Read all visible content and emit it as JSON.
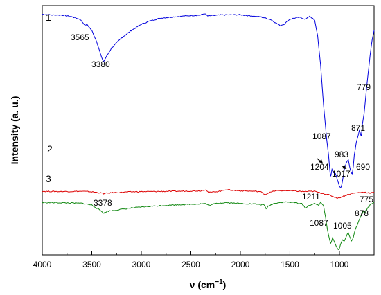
{
  "chart_data": {
    "type": "line",
    "xlabel": "ν (cm⁻¹)",
    "xlabel_parts": [
      "ν (cm",
      "−1",
      ")"
    ],
    "ylabel": "Intensity (a. u.)",
    "xlim": [
      4000,
      650
    ],
    "x_reversed": true,
    "xticks": [
      4000,
      3500,
      3000,
      2500,
      2000,
      1500,
      1000
    ],
    "y_ticks_shown": false,
    "grid": false,
    "legend": "none",
    "series": [
      {
        "label": "1",
        "color": "#0000dd",
        "points": [
          [
            4000,
            0.965
          ],
          [
            3900,
            0.962
          ],
          [
            3800,
            0.962
          ],
          [
            3700,
            0.955
          ],
          [
            3620,
            0.945
          ],
          [
            3565,
            0.92
          ],
          [
            3550,
            0.925
          ],
          [
            3500,
            0.9
          ],
          [
            3450,
            0.855
          ],
          [
            3400,
            0.79
          ],
          [
            3380,
            0.775
          ],
          [
            3360,
            0.79
          ],
          [
            3300,
            0.83
          ],
          [
            3200,
            0.87
          ],
          [
            3100,
            0.9
          ],
          [
            3000,
            0.925
          ],
          [
            2900,
            0.94
          ],
          [
            2800,
            0.95
          ],
          [
            2600,
            0.957
          ],
          [
            2400,
            0.962
          ],
          [
            2360,
            0.968
          ],
          [
            2330,
            0.958
          ],
          [
            2200,
            0.962
          ],
          [
            2000,
            0.963
          ],
          [
            1800,
            0.955
          ],
          [
            1700,
            0.945
          ],
          [
            1640,
            0.93
          ],
          [
            1600,
            0.92
          ],
          [
            1560,
            0.925
          ],
          [
            1500,
            0.945
          ],
          [
            1450,
            0.95
          ],
          [
            1400,
            0.952
          ],
          [
            1340,
            0.945
          ],
          [
            1300,
            0.958
          ],
          [
            1250,
            0.94
          ],
          [
            1220,
            0.88
          ],
          [
            1190,
            0.76
          ],
          [
            1160,
            0.6
          ],
          [
            1130,
            0.47
          ],
          [
            1110,
            0.4
          ],
          [
            1095,
            0.33
          ],
          [
            1087,
            0.315
          ],
          [
            1075,
            0.345
          ],
          [
            1060,
            0.33
          ],
          [
            1040,
            0.325
          ],
          [
            1020,
            0.3
          ],
          [
            1000,
            0.275
          ],
          [
            983,
            0.27
          ],
          [
            970,
            0.295
          ],
          [
            950,
            0.345
          ],
          [
            930,
            0.37
          ],
          [
            910,
            0.38
          ],
          [
            895,
            0.35
          ],
          [
            880,
            0.33
          ],
          [
            871,
            0.325
          ],
          [
            860,
            0.355
          ],
          [
            850,
            0.4
          ],
          [
            830,
            0.45
          ],
          [
            810,
            0.48
          ],
          [
            800,
            0.5
          ],
          [
            790,
            0.49
          ],
          [
            779,
            0.475
          ],
          [
            770,
            0.52
          ],
          [
            750,
            0.57
          ],
          [
            730,
            0.65
          ],
          [
            710,
            0.73
          ],
          [
            690,
            0.8
          ],
          [
            670,
            0.86
          ],
          [
            650,
            0.9
          ]
        ],
        "peak_labels": [
          "3565",
          "3380",
          "1087",
          "983",
          "871",
          "779"
        ]
      },
      {
        "label": "2",
        "color": "#dd0000",
        "points": [
          [
            4000,
            0.255
          ],
          [
            3800,
            0.254
          ],
          [
            3600,
            0.255
          ],
          [
            3500,
            0.253
          ],
          [
            3400,
            0.248
          ],
          [
            3380,
            0.246
          ],
          [
            3300,
            0.249
          ],
          [
            3100,
            0.253
          ],
          [
            2900,
            0.254
          ],
          [
            2700,
            0.255
          ],
          [
            2400,
            0.257
          ],
          [
            2350,
            0.262
          ],
          [
            2320,
            0.25
          ],
          [
            2200,
            0.256
          ],
          [
            2150,
            0.262
          ],
          [
            2050,
            0.258
          ],
          [
            1900,
            0.256
          ],
          [
            1800,
            0.254
          ],
          [
            1750,
            0.242
          ],
          [
            1720,
            0.248
          ],
          [
            1650,
            0.257
          ],
          [
            1550,
            0.258
          ],
          [
            1450,
            0.256
          ],
          [
            1350,
            0.254
          ],
          [
            1250,
            0.255
          ],
          [
            1204,
            0.25
          ],
          [
            1150,
            0.245
          ],
          [
            1100,
            0.24
          ],
          [
            1050,
            0.232
          ],
          [
            1017,
            0.228
          ],
          [
            980,
            0.232
          ],
          [
            930,
            0.24
          ],
          [
            880,
            0.246
          ],
          [
            800,
            0.25
          ],
          [
            750,
            0.252
          ],
          [
            700,
            0.248
          ],
          [
            690,
            0.247
          ],
          [
            650,
            0.252
          ]
        ],
        "peak_labels": [
          "1204",
          "1017",
          "690"
        ]
      },
      {
        "label": "3",
        "color": "#118811",
        "points": [
          [
            4000,
            0.21
          ],
          [
            3800,
            0.209
          ],
          [
            3600,
            0.207
          ],
          [
            3500,
            0.2
          ],
          [
            3420,
            0.18
          ],
          [
            3378,
            0.168
          ],
          [
            3340,
            0.175
          ],
          [
            3250,
            0.18
          ],
          [
            3100,
            0.188
          ],
          [
            2900,
            0.195
          ],
          [
            2700,
            0.2
          ],
          [
            2500,
            0.203
          ],
          [
            2350,
            0.206
          ],
          [
            2320,
            0.198
          ],
          [
            2250,
            0.206
          ],
          [
            2150,
            0.21
          ],
          [
            2000,
            0.206
          ],
          [
            1850,
            0.204
          ],
          [
            1760,
            0.2
          ],
          [
            1740,
            0.185
          ],
          [
            1720,
            0.195
          ],
          [
            1650,
            0.208
          ],
          [
            1550,
            0.212
          ],
          [
            1450,
            0.21
          ],
          [
            1380,
            0.205
          ],
          [
            1340,
            0.188
          ],
          [
            1300,
            0.2
          ],
          [
            1250,
            0.205
          ],
          [
            1211,
            0.2
          ],
          [
            1190,
            0.21
          ],
          [
            1160,
            0.198
          ],
          [
            1140,
            0.15
          ],
          [
            1120,
            0.1
          ],
          [
            1100,
            0.06
          ],
          [
            1087,
            0.045
          ],
          [
            1070,
            0.07
          ],
          [
            1050,
            0.05
          ],
          [
            1020,
            0.025
          ],
          [
            1005,
            0.02
          ],
          [
            990,
            0.04
          ],
          [
            970,
            0.06
          ],
          [
            950,
            0.055
          ],
          [
            930,
            0.075
          ],
          [
            910,
            0.09
          ],
          [
            895,
            0.07
          ],
          [
            878,
            0.055
          ],
          [
            860,
            0.07
          ],
          [
            840,
            0.1
          ],
          [
            810,
            0.13
          ],
          [
            790,
            0.15
          ],
          [
            775,
            0.16
          ],
          [
            760,
            0.175
          ],
          [
            740,
            0.17
          ],
          [
            710,
            0.19
          ],
          [
            680,
            0.205
          ],
          [
            650,
            0.21
          ]
        ],
        "peak_labels": [
          "3378",
          "1211",
          "1087",
          "1005",
          "878",
          "775"
        ]
      }
    ]
  }
}
